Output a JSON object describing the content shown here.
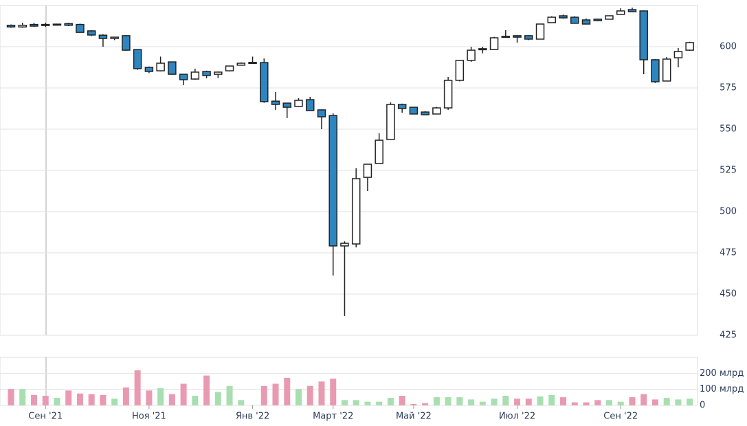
{
  "chart_data": {
    "type": "candlestick",
    "categories": [
      null,
      null,
      null,
      "Сен '21",
      null,
      null,
      null,
      null,
      null,
      null,
      null,
      null,
      "Ноя '21",
      null,
      null,
      null,
      null,
      null,
      null,
      null,
      null,
      "Янв '22",
      null,
      null,
      null,
      null,
      null,
      null,
      "Март '22",
      null,
      null,
      null,
      null,
      null,
      null,
      "Май '22",
      null,
      null,
      null,
      null,
      null,
      null,
      null,
      null,
      "Июл '22",
      null,
      null,
      null,
      null,
      null,
      null,
      null,
      null,
      "Сен '22",
      null,
      null,
      null,
      null,
      null,
      null
    ],
    "open": [
      613,
      612,
      613.5,
      613.5,
      613.5,
      614,
      613.5,
      609.6,
      607,
      605,
      606.7,
      598.3,
      587.5,
      585.4,
      590.8,
      583.3,
      580.4,
      585,
      583.3,
      585.4,
      588.8,
      590.4,
      590.4,
      567,
      565.8,
      563.8,
      567.9,
      561.7,
      558.3,
      479.2,
      480.4,
      520.8,
      529.2,
      543.75,
      565,
      563.3,
      560.4,
      559.2,
      562.9,
      579.6,
      591.7,
      598.75,
      598.3,
      606.25,
      606.7,
      606.7,
      604.6,
      614.6,
      618.75,
      617.9,
      616.25,
      616.7,
      616.7,
      619.6,
      622.5,
      621.7,
      592.1,
      579.2,
      593.3,
      597.9
    ],
    "close": [
      612,
      613,
      612.5,
      613,
      613.7,
      613,
      608.7,
      607.1,
      605,
      605.8,
      597.9,
      586.7,
      585,
      590,
      583.3,
      580,
      584.6,
      582.5,
      584.6,
      588.3,
      590,
      590.5,
      566.7,
      565,
      563.3,
      567.5,
      561.3,
      557.5,
      479.2,
      480.8,
      520,
      528.75,
      543.3,
      565,
      562.5,
      559.2,
      558.75,
      562.9,
      579.6,
      591.7,
      597.9,
      598.8,
      605.4,
      606.3,
      605.8,
      604.6,
      613.75,
      617.9,
      617.5,
      614.2,
      613.75,
      615.8,
      618.75,
      621.7,
      621.25,
      592.1,
      578.75,
      592.5,
      597.1,
      602.5
    ],
    "high": [
      613.5,
      614.5,
      614.5,
      614.5,
      614,
      614.5,
      614,
      610,
      607.5,
      606,
      607,
      598.5,
      588,
      594,
      591,
      583.5,
      586.7,
      585.5,
      585,
      588.5,
      590.5,
      594,
      592.9,
      572.5,
      566,
      568.8,
      569.6,
      562,
      559.6,
      482,
      526.25,
      529,
      547.5,
      566.25,
      565.5,
      563.5,
      561,
      563.5,
      581.7,
      592,
      600,
      600,
      606,
      610,
      607,
      607,
      614,
      618.5,
      619.5,
      618.5,
      617.1,
      617,
      619,
      623.3,
      623.7,
      622,
      592.5,
      593.8,
      599.2,
      603
    ],
    "low": [
      611.5,
      611.5,
      612,
      612,
      613,
      612.5,
      608.5,
      606.5,
      600,
      604,
      597.5,
      586,
      584,
      585,
      583,
      576.7,
      580,
      580.8,
      581,
      585,
      588.5,
      590,
      566,
      561.7,
      556.7,
      563.5,
      561,
      550,
      461.25,
      436.7,
      478.3,
      512.5,
      529,
      543.5,
      560,
      559,
      558.5,
      559,
      561.7,
      579,
      590.8,
      596,
      598,
      605.5,
      602.5,
      604,
      604.5,
      614.5,
      617,
      614,
      613.5,
      615.5,
      616.5,
      619.5,
      621,
      583.3,
      578,
      579,
      587.5,
      597.5
    ],
    "volume": [
      102,
      102,
      65,
      60,
      47,
      93,
      74,
      70,
      65,
      42,
      112,
      219,
      93,
      107,
      70,
      135,
      60,
      186,
      84,
      121,
      33,
      null,
      121,
      135,
      172,
      102,
      121,
      149,
      167,
      33,
      33,
      23,
      23,
      47,
      60,
      9,
      14,
      51,
      51,
      51,
      37,
      23,
      42,
      60,
      42,
      42,
      56,
      65,
      51,
      19,
      19,
      33,
      33,
      23,
      51,
      70,
      37,
      47,
      37,
      42
    ],
    "up_color": "#ffffff",
    "down_color": "#2e86c1",
    "up_volume_color": "#a8dfb0",
    "down_volume_color": "#e99ab2",
    "ylim": [
      425,
      625
    ],
    "yticks": [
      425,
      450,
      475,
      500,
      525,
      550,
      575,
      600
    ],
    "vlim": [
      0,
      300
    ],
    "vticks": [
      0,
      {
        "value": 100,
        "label": "100 млрд"
      },
      {
        "value": 200,
        "label": "200 млрд"
      }
    ],
    "grid": true
  }
}
